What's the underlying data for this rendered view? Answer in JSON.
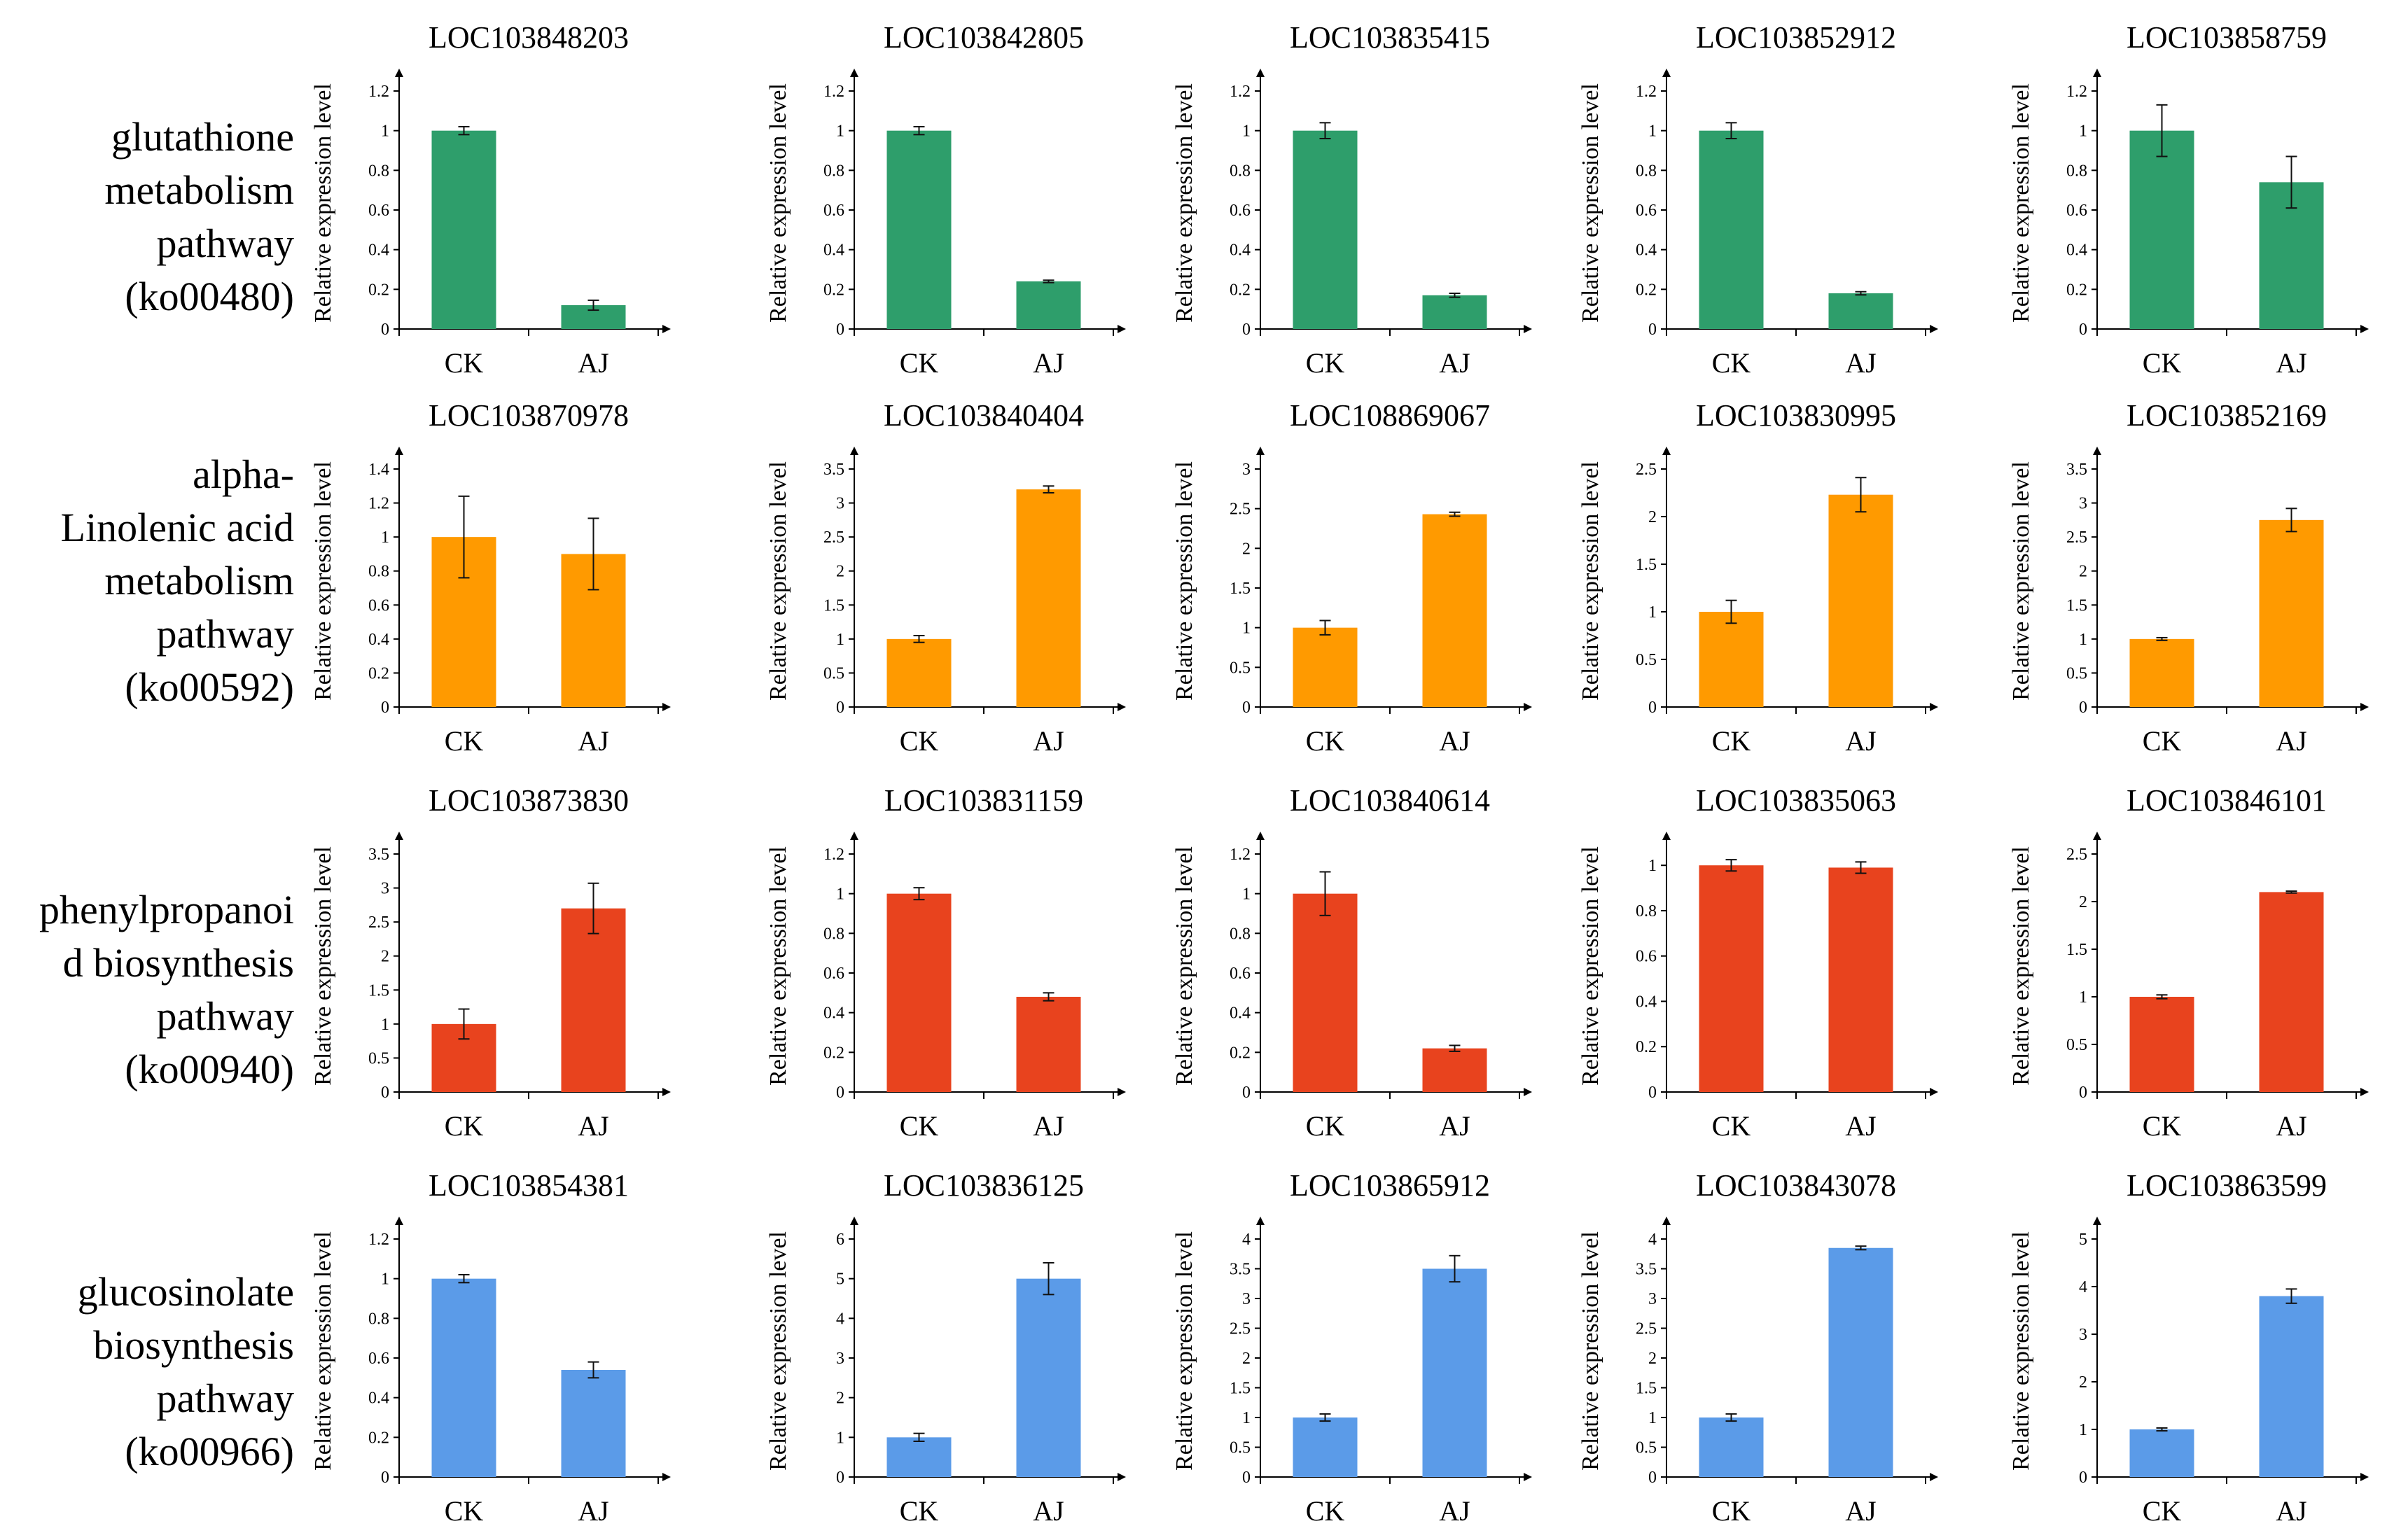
{
  "rows": [
    {
      "label": "glutathione\nmetabolism\npathway\n(ko00480)"
    },
    {
      "label": "alpha-\nLinolenic acid\nmetabolism\npathway\n(ko00592)"
    },
    {
      "label": "phenylpropanoi\nd biosynthesis\npathway\n(ko00940)"
    },
    {
      "label": "glucosinolate\nbiosynthesis\npathway\n(ko00966)"
    }
  ],
  "colors": [
    "#2e9e6b",
    "#ff9a00",
    "#e8431e",
    "#5b9be8"
  ],
  "chart_data": [
    {
      "type": "bar",
      "title": "LOC103848203",
      "ylabel": "Relative expression level",
      "categories": [
        "CK",
        "AJ"
      ],
      "values": [
        1.0,
        0.12
      ],
      "errors": [
        0.02,
        0.025
      ],
      "ylim": [
        0,
        1.2
      ],
      "yticks": [
        0,
        0.2,
        0.4,
        0.6,
        0.8,
        1,
        1.2
      ],
      "color": "#2e9e6b"
    },
    {
      "type": "bar",
      "title": "LOC103842805",
      "ylabel": "Relative expression level",
      "categories": [
        "CK",
        "AJ"
      ],
      "values": [
        1.0,
        0.24
      ],
      "errors": [
        0.02,
        0.006
      ],
      "ylim": [
        0,
        1.2
      ],
      "yticks": [
        0,
        0.2,
        0.4,
        0.6,
        0.8,
        1,
        1.2
      ],
      "color": "#2e9e6b"
    },
    {
      "type": "bar",
      "title": "LOC103835415",
      "ylabel": "Relative expression level",
      "categories": [
        "CK",
        "AJ"
      ],
      "values": [
        1.0,
        0.17
      ],
      "errors": [
        0.04,
        0.01
      ],
      "ylim": [
        0,
        1.2
      ],
      "yticks": [
        0,
        0.2,
        0.4,
        0.6,
        0.8,
        1,
        1.2
      ],
      "color": "#2e9e6b"
    },
    {
      "type": "bar",
      "title": "LOC103852912",
      "ylabel": "Relative expression level",
      "categories": [
        "CK",
        "AJ"
      ],
      "values": [
        1.0,
        0.18
      ],
      "errors": [
        0.04,
        0.008
      ],
      "ylim": [
        0,
        1.2
      ],
      "yticks": [
        0,
        0.2,
        0.4,
        0.6,
        0.8,
        1,
        1.2
      ],
      "color": "#2e9e6b"
    },
    {
      "type": "bar",
      "title": "LOC103858759",
      "ylabel": "Relative expression level",
      "categories": [
        "CK",
        "AJ"
      ],
      "values": [
        1.0,
        0.74
      ],
      "errors": [
        0.13,
        0.13
      ],
      "ylim": [
        0,
        1.2
      ],
      "yticks": [
        0,
        0.2,
        0.4,
        0.6,
        0.8,
        1,
        1.2
      ],
      "color": "#2e9e6b"
    },
    {
      "type": "bar",
      "title": "LOC103870978",
      "ylabel": "Relative expression level",
      "categories": [
        "CK",
        "AJ"
      ],
      "values": [
        1.0,
        0.9
      ],
      "errors": [
        0.24,
        0.21
      ],
      "ylim": [
        0,
        1.4
      ],
      "yticks": [
        0,
        0.2,
        0.4,
        0.6,
        0.8,
        1,
        1.2,
        1.4
      ],
      "color": "#ff9a00"
    },
    {
      "type": "bar",
      "title": "LOC103840404",
      "ylabel": "Relative expression level",
      "categories": [
        "CK",
        "AJ"
      ],
      "values": [
        1.0,
        3.2
      ],
      "errors": [
        0.05,
        0.05
      ],
      "ylim": [
        0,
        3.5
      ],
      "yticks": [
        0,
        0.5,
        1,
        1.5,
        2,
        2.5,
        3,
        3.5
      ],
      "color": "#ff9a00"
    },
    {
      "type": "bar",
      "title": "LOC108869067",
      "ylabel": "Relative expression level",
      "categories": [
        "CK",
        "AJ"
      ],
      "values": [
        1.0,
        2.43
      ],
      "errors": [
        0.09,
        0.025
      ],
      "ylim": [
        0,
        3
      ],
      "yticks": [
        0,
        0.5,
        1,
        1.5,
        2,
        2.5,
        3
      ],
      "color": "#ff9a00"
    },
    {
      "type": "bar",
      "title": "LOC103830995",
      "ylabel": "Relative expression level",
      "categories": [
        "CK",
        "AJ"
      ],
      "values": [
        1.0,
        2.23
      ],
      "errors": [
        0.12,
        0.18
      ],
      "ylim": [
        0,
        2.5
      ],
      "yticks": [
        0,
        0.5,
        1,
        1.5,
        2,
        2.5
      ],
      "color": "#ff9a00"
    },
    {
      "type": "bar",
      "title": "LOC103852169",
      "ylabel": "Relative expression level",
      "categories": [
        "CK",
        "AJ"
      ],
      "values": [
        1.0,
        2.75
      ],
      "errors": [
        0.02,
        0.17
      ],
      "ylim": [
        0,
        3.5
      ],
      "yticks": [
        0,
        0.5,
        1,
        1.5,
        2,
        2.5,
        3,
        3.5
      ],
      "color": "#ff9a00"
    },
    {
      "type": "bar",
      "title": "LOC103873830",
      "ylabel": "Relative expression level",
      "categories": [
        "CK",
        "AJ"
      ],
      "values": [
        1.0,
        2.7
      ],
      "errors": [
        0.22,
        0.37
      ],
      "ylim": [
        0,
        3.5
      ],
      "yticks": [
        0,
        0.5,
        1,
        1.5,
        2,
        2.5,
        3,
        3.5
      ],
      "color": "#e8431e"
    },
    {
      "type": "bar",
      "title": "LOC103831159",
      "ylabel": "Relative expression level",
      "categories": [
        "CK",
        "AJ"
      ],
      "values": [
        1.0,
        0.48
      ],
      "errors": [
        0.03,
        0.02
      ],
      "ylim": [
        0,
        1.2
      ],
      "yticks": [
        0,
        0.2,
        0.4,
        0.6,
        0.8,
        1,
        1.2
      ],
      "color": "#e8431e"
    },
    {
      "type": "bar",
      "title": "LOC103840614",
      "ylabel": "Relative expression level",
      "categories": [
        "CK",
        "AJ"
      ],
      "values": [
        1.0,
        0.22
      ],
      "errors": [
        0.11,
        0.015
      ],
      "ylim": [
        0,
        1.2
      ],
      "yticks": [
        0,
        0.2,
        0.4,
        0.6,
        0.8,
        1,
        1.2
      ],
      "color": "#e8431e"
    },
    {
      "type": "bar",
      "title": "LOC103835063",
      "ylabel": "Relative expression level",
      "categories": [
        "CK",
        "AJ"
      ],
      "values": [
        1.0,
        0.99
      ],
      "errors": [
        0.025,
        0.025
      ],
      "ylim": [
        0,
        1.05
      ],
      "yticks": [
        0,
        0.2,
        0.4,
        0.6,
        0.8,
        1
      ],
      "color": "#e8431e"
    },
    {
      "type": "bar",
      "title": "LOC103846101",
      "ylabel": "Relative expression level",
      "categories": [
        "CK",
        "AJ"
      ],
      "values": [
        1.0,
        2.1
      ],
      "errors": [
        0.02,
        0.01
      ],
      "ylim": [
        0,
        2.5
      ],
      "yticks": [
        0,
        0.5,
        1,
        1.5,
        2,
        2.5
      ],
      "color": "#e8431e"
    },
    {
      "type": "bar",
      "title": "LOC103854381",
      "ylabel": "Relative expression level",
      "categories": [
        "CK",
        "AJ"
      ],
      "values": [
        1.0,
        0.54
      ],
      "errors": [
        0.02,
        0.04
      ],
      "ylim": [
        0,
        1.2
      ],
      "yticks": [
        0,
        0.2,
        0.4,
        0.6,
        0.8,
        1,
        1.2
      ],
      "color": "#5b9be8"
    },
    {
      "type": "bar",
      "title": "LOC103836125",
      "ylabel": "Relative expression level",
      "categories": [
        "CK",
        "AJ"
      ],
      "values": [
        1.0,
        5.0
      ],
      "errors": [
        0.1,
        0.4
      ],
      "ylim": [
        0,
        6
      ],
      "yticks": [
        0,
        1,
        2,
        3,
        4,
        5,
        6
      ],
      "color": "#5b9be8"
    },
    {
      "type": "bar",
      "title": "LOC103865912",
      "ylabel": "Relative expression level",
      "categories": [
        "CK",
        "AJ"
      ],
      "values": [
        1.0,
        3.5
      ],
      "errors": [
        0.06,
        0.22
      ],
      "ylim": [
        0,
        4
      ],
      "yticks": [
        0,
        0.5,
        1,
        1.5,
        2,
        2.5,
        3,
        3.5,
        4
      ],
      "color": "#5b9be8"
    },
    {
      "type": "bar",
      "title": "LOC103843078",
      "ylabel": "Relative expression level",
      "categories": [
        "CK",
        "AJ"
      ],
      "values": [
        1.0,
        3.85
      ],
      "errors": [
        0.06,
        0.03
      ],
      "ylim": [
        0,
        4
      ],
      "yticks": [
        0,
        0.5,
        1,
        1.5,
        2,
        2.5,
        3,
        3.5,
        4
      ],
      "color": "#5b9be8"
    },
    {
      "type": "bar",
      "title": "LOC103863599",
      "ylabel": "Relative expression level",
      "categories": [
        "CK",
        "AJ"
      ],
      "values": [
        1.0,
        3.8
      ],
      "errors": [
        0.03,
        0.15
      ],
      "ylim": [
        0,
        5
      ],
      "yticks": [
        0,
        1,
        2,
        3,
        4,
        5
      ],
      "color": "#5b9be8"
    }
  ]
}
